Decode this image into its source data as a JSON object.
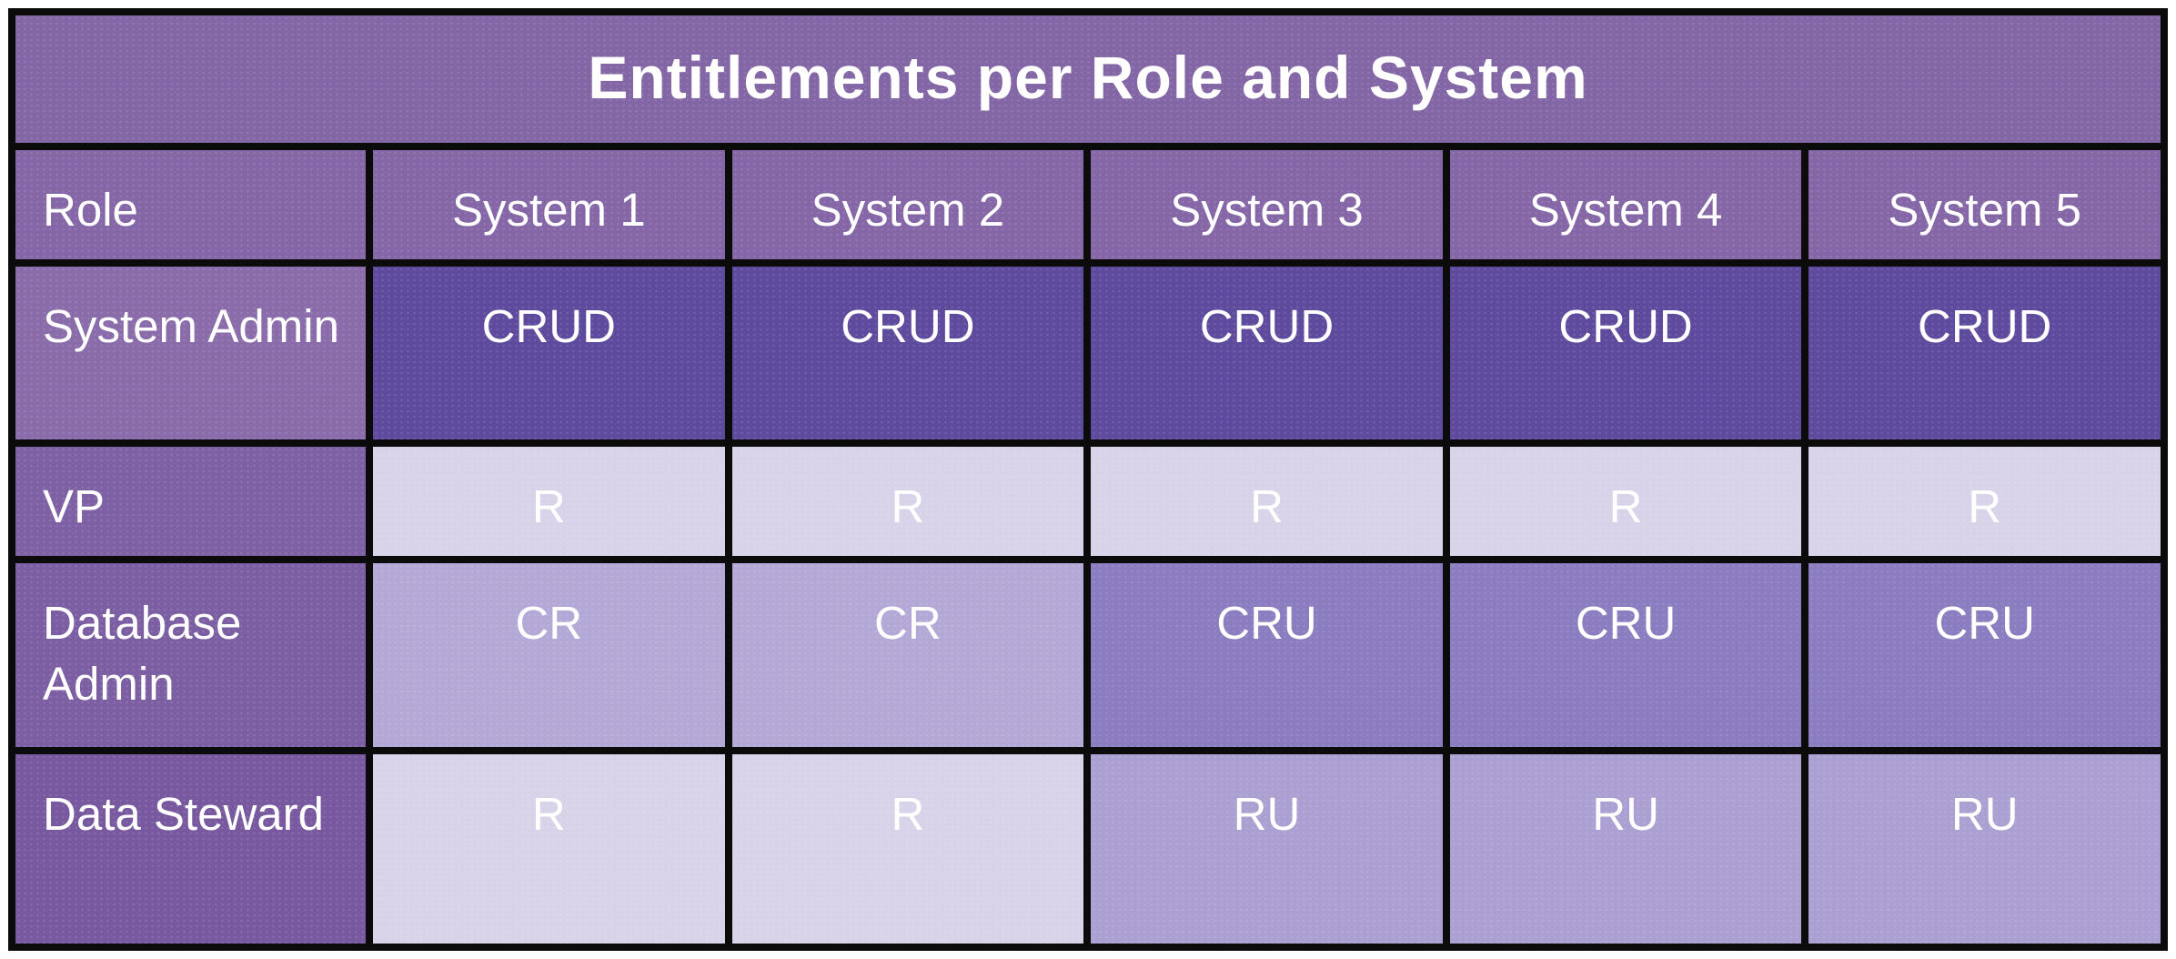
{
  "title": "Entitlements per Role and System",
  "table": {
    "columns": [
      "Role",
      "System 1",
      "System 2",
      "System 3",
      "System 4",
      "System 5"
    ],
    "rows": [
      {
        "role": "System Admin",
        "values": [
          "CRUD",
          "CRUD",
          "CRUD",
          "CRUD",
          "CRUD"
        ]
      },
      {
        "role": "VP",
        "values": [
          "R",
          "R",
          "R",
          "R",
          "R"
        ]
      },
      {
        "role": "Database Admin",
        "values": [
          "CR",
          "CR",
          "CRU",
          "CRU",
          "CRU"
        ]
      },
      {
        "role": "Data Steward",
        "values": [
          "R",
          "R",
          "RU",
          "RU",
          "RU"
        ]
      }
    ]
  },
  "colors": {
    "frame_border": "#0b0b0b",
    "text": "#ffffff",
    "title_bg": "#8366a5",
    "header_bg": "#8567a7",
    "row_label_bg": {
      "System Admin": "#8a6cab",
      "VP": "#7e60a4",
      "Database Admin": "#7c5ea3",
      "Data Steward": "#7859a0"
    },
    "entitlement_bg": {
      "CRUD": "#5e4b9d",
      "CRU": "#8b7dbf",
      "CR": "#b4a9d6",
      "RU": "#aba0d1",
      "R": "#d8d3e9"
    }
  },
  "chart_data": {
    "type": "table",
    "title": "Entitlements per Role and System",
    "columns": [
      "Role",
      "System 1",
      "System 2",
      "System 3",
      "System 4",
      "System 5"
    ],
    "rows": [
      [
        "System Admin",
        "CRUD",
        "CRUD",
        "CRUD",
        "CRUD",
        "CRUD"
      ],
      [
        "VP",
        "R",
        "R",
        "R",
        "R",
        "R"
      ],
      [
        "Database Admin",
        "CR",
        "CR",
        "CRU",
        "CRU",
        "CRU"
      ],
      [
        "Data Steward",
        "R",
        "R",
        "RU",
        "RU",
        "RU"
      ]
    ]
  }
}
